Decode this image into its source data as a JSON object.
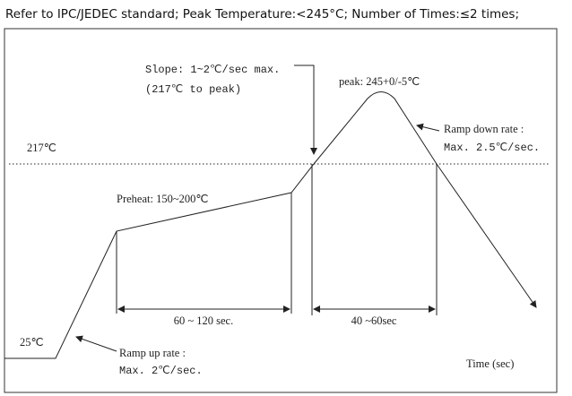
{
  "header": {
    "title": "Refer to IPC/JEDEC standard; Peak Temperature:<245°C; Number of Times:≤2 times;"
  },
  "labels": {
    "slope_line1": "Slope: 1~2℃/sec max.",
    "slope_line2": "(217℃ to peak)",
    "peak": "peak: 245+0/-5℃",
    "ramp_down_line1": "Ramp down rate :",
    "ramp_down_line2": "Max. 2.5℃/sec.",
    "liquidus": "217℃",
    "preheat": "Preheat: 150~200℃",
    "start_temp": "25℃",
    "ramp_up_line1": "Ramp up rate :",
    "ramp_up_line2": "Max. 2℃/sec.",
    "preheat_time": "60 ~ 120 sec.",
    "liquidus_time": "40 ~60sec",
    "x_axis": "Time (sec)"
  }
}
